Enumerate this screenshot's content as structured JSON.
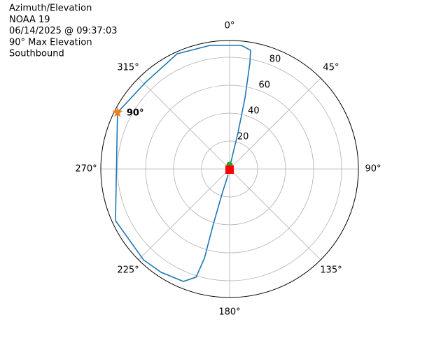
{
  "chart_data": {
    "type": "polar",
    "title_lines": [
      "Azimuth/Elevation",
      "NOAA 19",
      "06/14/2025 @ 09:37:03",
      "90° Max Elevation",
      "Southbound"
    ],
    "theta_zero": "N",
    "theta_direction": "clockwise",
    "thetaticks": [
      {
        "value": 0,
        "label": "0°"
      },
      {
        "value": 45,
        "label": "45°"
      },
      {
        "value": 90,
        "label": "90°"
      },
      {
        "value": 135,
        "label": "135°"
      },
      {
        "value": 180,
        "label": "180°"
      },
      {
        "value": 225,
        "label": "225°"
      },
      {
        "value": 270,
        "label": "270°"
      },
      {
        "value": 315,
        "label": "315°"
      }
    ],
    "ylim": [
      0,
      92
    ],
    "yticks": [
      20,
      40,
      60,
      80
    ],
    "grid": true,
    "series": [
      {
        "color": "#1f77b4",
        "theta": [
          11,
          13,
          12.2,
          10.8,
          10,
          5.5,
          351,
          335.6,
          316,
          296.8,
          245.6,
          223.4,
          213.5,
          202.3,
          197.2,
          195.7,
          196.4,
          196.9,
          194
        ],
        "r": [
          5,
          26.7,
          52,
          77.4,
          86.3,
          88.9,
          89.6,
          90.6,
          86.3,
          89.7,
          89.5,
          89.5,
          88.7,
          87,
          81,
          66.5,
          40.7,
          17.2,
          4.1
        ]
      }
    ],
    "markers": [
      {
        "theta": 0,
        "r": 3,
        "color": "#2ca02c",
        "shape": "circle"
      },
      {
        "theta": 180,
        "r": 0.5,
        "color": "#ff0000",
        "shape": "square"
      },
      {
        "theta": 296.8,
        "r": 89.7,
        "color": "#ff7f0e",
        "shape": "star"
      }
    ],
    "annotation": {
      "text": "90°"
    }
  }
}
